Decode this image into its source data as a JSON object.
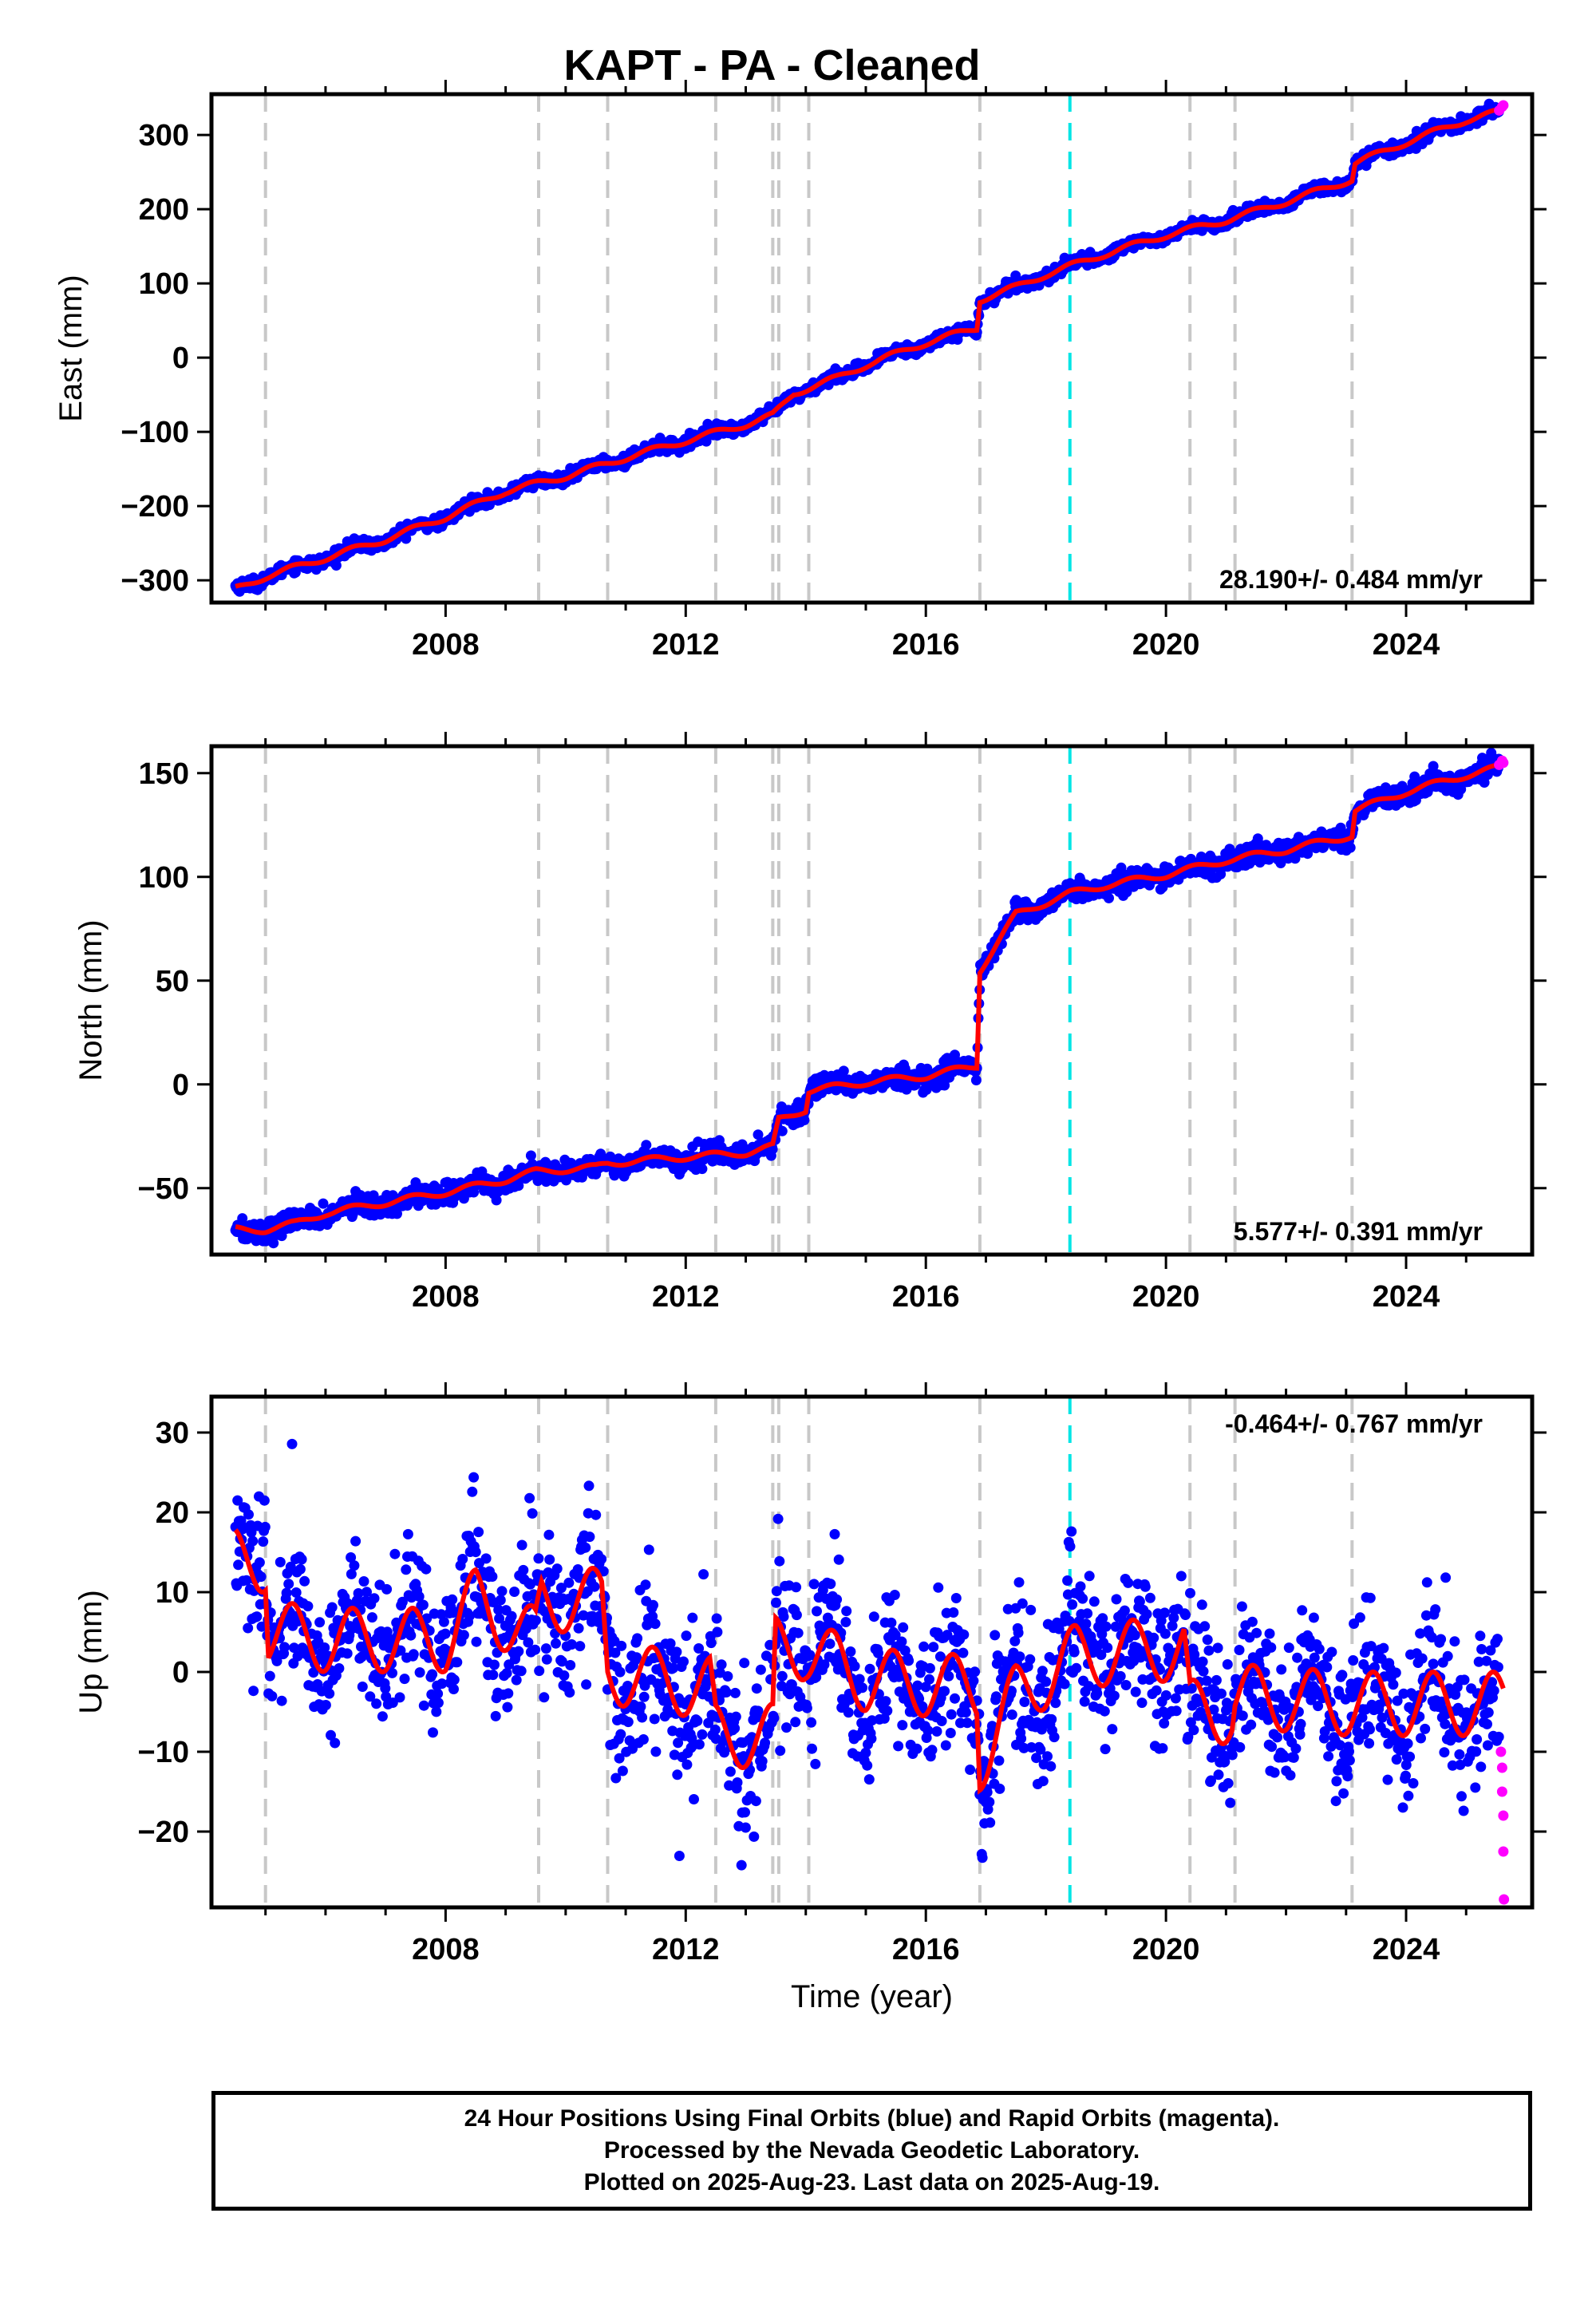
{
  "chart_data": [
    {
      "type": "scatter",
      "title": "KAPT  - PA - Cleaned",
      "ylabel": "East (mm)",
      "xlabel": "",
      "xlim": [
        2004.1,
        2026.1
      ],
      "ylim": [
        -330,
        355
      ],
      "xticks": [
        2008,
        2012,
        2016,
        2020,
        2024
      ],
      "yticks": [
        -300,
        -200,
        -100,
        0,
        100,
        200,
        300
      ],
      "rate_label": "28.190+/- 0.484 mm/yr",
      "rate_label_position": "bottom-right",
      "fit_model": {
        "knots": [
          [
            2004.5,
            -312
          ],
          [
            2005.0,
            -295
          ],
          [
            2006.0,
            -270
          ],
          [
            2007.0,
            -245
          ],
          [
            2008.0,
            -215
          ],
          [
            2009.0,
            -180
          ],
          [
            2010.0,
            -160
          ],
          [
            2011.0,
            -135
          ],
          [
            2012.0,
            -112
          ],
          [
            2013.0,
            -90
          ],
          [
            2013.45,
            -78
          ],
          [
            2013.8,
            -48
          ],
          [
            2014.5,
            -28
          ],
          [
            2015.0,
            -10
          ],
          [
            2016.0,
            20
          ],
          [
            2016.85,
            40
          ],
          [
            2016.9,
            78
          ],
          [
            2017.5,
            95
          ],
          [
            2018.0,
            112
          ],
          [
            2019.0,
            140
          ],
          [
            2020.0,
            165
          ],
          [
            2021.0,
            185
          ],
          [
            2022.0,
            210
          ],
          [
            2023.1,
            240
          ],
          [
            2023.15,
            262
          ],
          [
            2024.0,
            290
          ],
          [
            2025.0,
            320
          ],
          [
            2025.6,
            332
          ]
        ],
        "seasonal_amplitude": 4,
        "noise": 4
      },
      "rapid_points": [
        [
          2025.55,
          333
        ],
        [
          2025.6,
          338
        ],
        [
          2025.62,
          340
        ]
      ]
    },
    {
      "type": "scatter",
      "title": "",
      "ylabel": "North (mm)",
      "xlabel": "",
      "xlim": [
        2004.1,
        2026.1
      ],
      "ylim": [
        -82,
        163
      ],
      "xticks": [
        2008,
        2012,
        2016,
        2020,
        2024
      ],
      "yticks": [
        -50,
        0,
        50,
        100,
        150
      ],
      "rate_label": "5.577+/- 0.391 mm/yr",
      "rate_label_position": "bottom-right",
      "fit_model": {
        "knots": [
          [
            2004.5,
            -70
          ],
          [
            2005.0,
            -70
          ],
          [
            2005.5,
            -67
          ],
          [
            2006.0,
            -62
          ],
          [
            2007.0,
            -57
          ],
          [
            2008.0,
            -52
          ],
          [
            2009.0,
            -46
          ],
          [
            2009.5,
            -42
          ],
          [
            2010.5,
            -40
          ],
          [
            2010.7,
            -38
          ],
          [
            2012.0,
            -35
          ],
          [
            2013.0,
            -33
          ],
          [
            2013.45,
            -30
          ],
          [
            2013.55,
            -17
          ],
          [
            2014.0,
            -12
          ],
          [
            2014.05,
            -3
          ],
          [
            2015.0,
            1
          ],
          [
            2016.0,
            4
          ],
          [
            2016.85,
            9
          ],
          [
            2016.9,
            55
          ],
          [
            2017.5,
            82
          ],
          [
            2018.4,
            92
          ],
          [
            2019.0,
            96
          ],
          [
            2020.0,
            101
          ],
          [
            2021.0,
            108
          ],
          [
            2022.0,
            113
          ],
          [
            2023.1,
            120
          ],
          [
            2023.15,
            132
          ],
          [
            2024.0,
            141
          ],
          [
            2025.0,
            149
          ],
          [
            2025.6,
            153
          ]
        ],
        "seasonal_amplitude": 1.5,
        "noise": 2.5
      },
      "rapid_points": [
        [
          2025.55,
          154
        ],
        [
          2025.6,
          156
        ],
        [
          2025.62,
          155
        ]
      ]
    },
    {
      "type": "scatter",
      "title": "",
      "ylabel": "Up (mm)",
      "xlabel": "Time (year)",
      "xlim": [
        2004.1,
        2026.1
      ],
      "ylim": [
        -29.5,
        34.5
      ],
      "xticks": [
        2008,
        2012,
        2016,
        2020,
        2024
      ],
      "yticks": [
        -20,
        -10,
        0,
        10,
        20,
        30
      ],
      "rate_label": "-0.464+/- 0.767 mm/yr",
      "rate_label_position": "top-right",
      "fit_model": {
        "knots": [
          [
            2004.5,
            14
          ],
          [
            2005.0,
            14
          ],
          [
            2005.05,
            5
          ],
          [
            2006.0,
            4
          ],
          [
            2007.0,
            4
          ],
          [
            2008.0,
            4
          ],
          [
            2008.5,
            9
          ],
          [
            2009.5,
            4
          ],
          [
            2009.6,
            9
          ],
          [
            2010.6,
            9
          ],
          [
            2010.7,
            0
          ],
          [
            2012.4,
            -2
          ],
          [
            2012.5,
            -8
          ],
          [
            2013.45,
            -8
          ],
          [
            2013.5,
            3
          ],
          [
            2014.0,
            3
          ],
          [
            2015.0,
            -1
          ],
          [
            2016.85,
            -2
          ],
          [
            2016.9,
            -11
          ],
          [
            2017.5,
            -3
          ],
          [
            2018.5,
            2
          ],
          [
            2020.3,
            3
          ],
          [
            2020.4,
            -5
          ],
          [
            2021.1,
            -5
          ],
          [
            2021.15,
            -3
          ],
          [
            2023.1,
            -4
          ],
          [
            2025.6,
            -4
          ]
        ],
        "seasonal_amplitude": 4,
        "noise": 4.5
      },
      "rapid_points": [
        [
          2025.58,
          -10
        ],
        [
          2025.6,
          -12
        ],
        [
          2025.6,
          -15
        ],
        [
          2025.62,
          -18
        ],
        [
          2025.62,
          -22.5
        ],
        [
          2025.63,
          -28.5
        ]
      ]
    }
  ],
  "event_lines": {
    "equipment_changes": [
      2005.0,
      2009.55,
      2010.7,
      2012.5,
      2013.45,
      2013.55,
      2014.05,
      2016.9,
      2020.4,
      2021.15,
      2023.1
    ],
    "earthquake": [
      2018.4
    ]
  },
  "colors": {
    "final_orbits": "#0000ff",
    "rapid_orbits": "#ff00ff",
    "model": "#ff0000",
    "equipment_line": "#c8c8c8",
    "earthquake_line": "#00e5e5",
    "axes": "#000000"
  },
  "footer": {
    "line1": "24 Hour Positions Using Final Orbits (blue) and Rapid Orbits (magenta).",
    "line2": "Processed by the Nevada Geodetic Laboratory.",
    "line3": "Plotted on 2025-Aug-23. Last data on 2025-Aug-19."
  }
}
